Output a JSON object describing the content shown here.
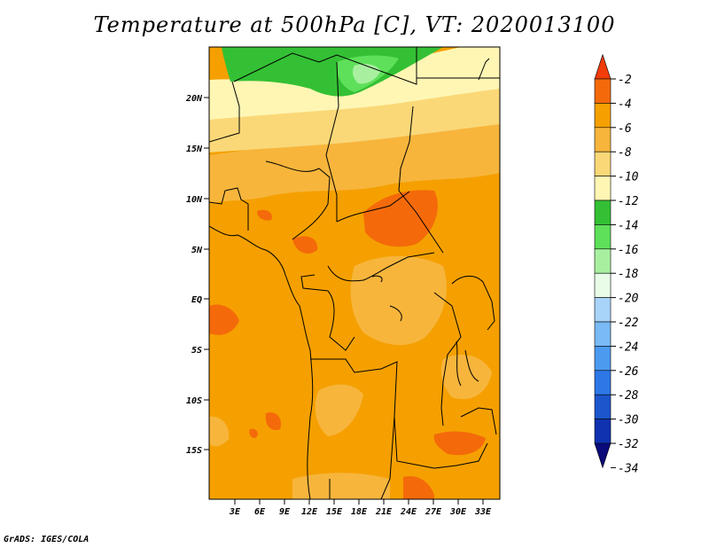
{
  "title": "Temperature at 500hPa [C], VT: 2020013100",
  "footer": "GrADS: IGES/COLA",
  "map": {
    "lat_labels": [
      "20N",
      "15N",
      "10N",
      "5N",
      "EQ",
      "5S",
      "10S",
      "15S"
    ],
    "lon_labels": [
      "3E",
      "6E",
      "9E",
      "12E",
      "15E",
      "18E",
      "21E",
      "24E",
      "27E",
      "30E",
      "33E"
    ]
  },
  "colorbar": {
    "labels": [
      "-2",
      "-4",
      "-6",
      "-8",
      "-10",
      "-12",
      "-14",
      "-16",
      "-18",
      "-20",
      "-22",
      "-24",
      "-26",
      "-28",
      "-30",
      "-32",
      "-34"
    ],
    "colors": [
      "#f23c0a",
      "#f46a0a",
      "#f5a000",
      "#f7b53c",
      "#fad878",
      "#fff6b4",
      "#34c034",
      "#5ee05a",
      "#a8f0a0",
      "#e8fce8",
      "#a8d4fa",
      "#7abaf5",
      "#4c9af0",
      "#2e78e6",
      "#1c55cc",
      "#1032b0",
      "#0a0a7a"
    ]
  }
}
